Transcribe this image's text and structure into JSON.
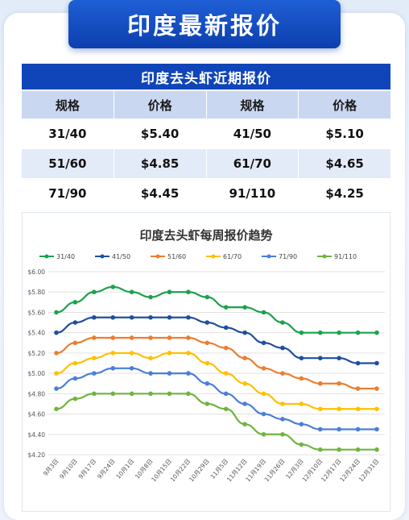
{
  "banner_title": "印度最新报价",
  "table": {
    "title": "印度去头虾近期报价",
    "headers": [
      "规格",
      "价格",
      "规格",
      "价格"
    ],
    "rows": [
      [
        "31/40",
        "$5.40",
        "41/50",
        "$5.10"
      ],
      [
        "51/60",
        "$4.85",
        "61/70",
        "$4.65"
      ],
      [
        "71/90",
        "$4.45",
        "91/110",
        "$4.25"
      ]
    ]
  },
  "chart_data": {
    "type": "line",
    "title": "印度去头虾每周报价趋势",
    "xlabel": "",
    "ylabel": "",
    "ylim": [
      4.2,
      6.0
    ],
    "yticks": [
      "$4.20",
      "$4.40",
      "$4.60",
      "$4.80",
      "$5.00",
      "$5.20",
      "$5.40",
      "$5.60",
      "$5.80",
      "$6.00"
    ],
    "grid": true,
    "legend": "top",
    "categories": [
      "9月3日",
      "9月10日",
      "9月17日",
      "9月24日",
      "10月1日",
      "10月8日",
      "10月15日",
      "10月22日",
      "10月29日",
      "11月5日",
      "11月12日",
      "11月19日",
      "11月26日",
      "12月3日",
      "12月10日",
      "12月17日",
      "12月24日",
      "12月31日"
    ],
    "series": [
      {
        "name": "31/40",
        "color": "#1aa34a",
        "values": [
          5.6,
          5.7,
          5.8,
          5.85,
          5.8,
          5.75,
          5.8,
          5.8,
          5.75,
          5.65,
          5.65,
          5.6,
          5.5,
          5.4,
          5.4,
          5.4,
          5.4,
          5.4
        ]
      },
      {
        "name": "41/50",
        "color": "#1f4e9e",
        "values": [
          5.4,
          5.5,
          5.55,
          5.55,
          5.55,
          5.55,
          5.55,
          5.55,
          5.5,
          5.45,
          5.4,
          5.3,
          5.25,
          5.15,
          5.15,
          5.15,
          5.1,
          5.1
        ]
      },
      {
        "name": "51/60",
        "color": "#ed7d31",
        "values": [
          5.2,
          5.3,
          5.35,
          5.35,
          5.35,
          5.35,
          5.35,
          5.35,
          5.3,
          5.25,
          5.15,
          5.05,
          5.0,
          4.95,
          4.9,
          4.9,
          4.85,
          4.85
        ]
      },
      {
        "name": "61/70",
        "color": "#ffc000",
        "values": [
          5.0,
          5.1,
          5.15,
          5.2,
          5.2,
          5.15,
          5.2,
          5.2,
          5.1,
          5.0,
          4.9,
          4.8,
          4.7,
          4.7,
          4.65,
          4.65,
          4.65,
          4.65
        ]
      },
      {
        "name": "71/90",
        "color": "#4a7fd6",
        "values": [
          4.85,
          4.95,
          5.0,
          5.05,
          5.05,
          5.0,
          5.0,
          5.0,
          4.9,
          4.8,
          4.7,
          4.6,
          4.55,
          4.5,
          4.45,
          4.45,
          4.45,
          4.45
        ]
      },
      {
        "name": "91/110",
        "color": "#6fb53e",
        "values": [
          4.65,
          4.75,
          4.8,
          4.8,
          4.8,
          4.8,
          4.8,
          4.8,
          4.7,
          4.65,
          4.5,
          4.4,
          4.4,
          4.3,
          4.25,
          4.25,
          4.25,
          4.25
        ]
      }
    ]
  }
}
